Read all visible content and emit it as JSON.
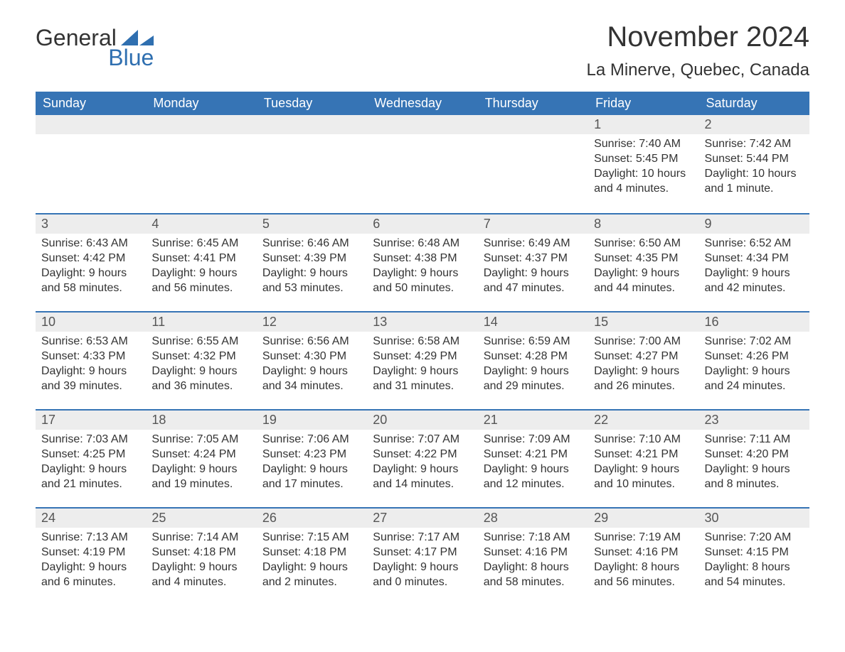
{
  "logo": {
    "word1": "General",
    "word2": "Blue"
  },
  "title": "November 2024",
  "location": "La Minerve, Quebec, Canada",
  "colors": {
    "header_bg": "#3674b5",
    "header_text": "#ffffff",
    "row_accent": "#3674b5",
    "daynum_bg": "#ededed",
    "text": "#333333",
    "logo_blue": "#2f6fb0",
    "page_bg": "#ffffff"
  },
  "columns": [
    "Sunday",
    "Monday",
    "Tuesday",
    "Wednesday",
    "Thursday",
    "Friday",
    "Saturday"
  ],
  "weeks": [
    [
      null,
      null,
      null,
      null,
      null,
      {
        "n": "1",
        "sunrise": "Sunrise: 7:40 AM",
        "sunset": "Sunset: 5:45 PM",
        "daylight": "Daylight: 10 hours and 4 minutes."
      },
      {
        "n": "2",
        "sunrise": "Sunrise: 7:42 AM",
        "sunset": "Sunset: 5:44 PM",
        "daylight": "Daylight: 10 hours and 1 minute."
      }
    ],
    [
      {
        "n": "3",
        "sunrise": "Sunrise: 6:43 AM",
        "sunset": "Sunset: 4:42 PM",
        "daylight": "Daylight: 9 hours and 58 minutes."
      },
      {
        "n": "4",
        "sunrise": "Sunrise: 6:45 AM",
        "sunset": "Sunset: 4:41 PM",
        "daylight": "Daylight: 9 hours and 56 minutes."
      },
      {
        "n": "5",
        "sunrise": "Sunrise: 6:46 AM",
        "sunset": "Sunset: 4:39 PM",
        "daylight": "Daylight: 9 hours and 53 minutes."
      },
      {
        "n": "6",
        "sunrise": "Sunrise: 6:48 AM",
        "sunset": "Sunset: 4:38 PM",
        "daylight": "Daylight: 9 hours and 50 minutes."
      },
      {
        "n": "7",
        "sunrise": "Sunrise: 6:49 AM",
        "sunset": "Sunset: 4:37 PM",
        "daylight": "Daylight: 9 hours and 47 minutes."
      },
      {
        "n": "8",
        "sunrise": "Sunrise: 6:50 AM",
        "sunset": "Sunset: 4:35 PM",
        "daylight": "Daylight: 9 hours and 44 minutes."
      },
      {
        "n": "9",
        "sunrise": "Sunrise: 6:52 AM",
        "sunset": "Sunset: 4:34 PM",
        "daylight": "Daylight: 9 hours and 42 minutes."
      }
    ],
    [
      {
        "n": "10",
        "sunrise": "Sunrise: 6:53 AM",
        "sunset": "Sunset: 4:33 PM",
        "daylight": "Daylight: 9 hours and 39 minutes."
      },
      {
        "n": "11",
        "sunrise": "Sunrise: 6:55 AM",
        "sunset": "Sunset: 4:32 PM",
        "daylight": "Daylight: 9 hours and 36 minutes."
      },
      {
        "n": "12",
        "sunrise": "Sunrise: 6:56 AM",
        "sunset": "Sunset: 4:30 PM",
        "daylight": "Daylight: 9 hours and 34 minutes."
      },
      {
        "n": "13",
        "sunrise": "Sunrise: 6:58 AM",
        "sunset": "Sunset: 4:29 PM",
        "daylight": "Daylight: 9 hours and 31 minutes."
      },
      {
        "n": "14",
        "sunrise": "Sunrise: 6:59 AM",
        "sunset": "Sunset: 4:28 PM",
        "daylight": "Daylight: 9 hours and 29 minutes."
      },
      {
        "n": "15",
        "sunrise": "Sunrise: 7:00 AM",
        "sunset": "Sunset: 4:27 PM",
        "daylight": "Daylight: 9 hours and 26 minutes."
      },
      {
        "n": "16",
        "sunrise": "Sunrise: 7:02 AM",
        "sunset": "Sunset: 4:26 PM",
        "daylight": "Daylight: 9 hours and 24 minutes."
      }
    ],
    [
      {
        "n": "17",
        "sunrise": "Sunrise: 7:03 AM",
        "sunset": "Sunset: 4:25 PM",
        "daylight": "Daylight: 9 hours and 21 minutes."
      },
      {
        "n": "18",
        "sunrise": "Sunrise: 7:05 AM",
        "sunset": "Sunset: 4:24 PM",
        "daylight": "Daylight: 9 hours and 19 minutes."
      },
      {
        "n": "19",
        "sunrise": "Sunrise: 7:06 AM",
        "sunset": "Sunset: 4:23 PM",
        "daylight": "Daylight: 9 hours and 17 minutes."
      },
      {
        "n": "20",
        "sunrise": "Sunrise: 7:07 AM",
        "sunset": "Sunset: 4:22 PM",
        "daylight": "Daylight: 9 hours and 14 minutes."
      },
      {
        "n": "21",
        "sunrise": "Sunrise: 7:09 AM",
        "sunset": "Sunset: 4:21 PM",
        "daylight": "Daylight: 9 hours and 12 minutes."
      },
      {
        "n": "22",
        "sunrise": "Sunrise: 7:10 AM",
        "sunset": "Sunset: 4:21 PM",
        "daylight": "Daylight: 9 hours and 10 minutes."
      },
      {
        "n": "23",
        "sunrise": "Sunrise: 7:11 AM",
        "sunset": "Sunset: 4:20 PM",
        "daylight": "Daylight: 9 hours and 8 minutes."
      }
    ],
    [
      {
        "n": "24",
        "sunrise": "Sunrise: 7:13 AM",
        "sunset": "Sunset: 4:19 PM",
        "daylight": "Daylight: 9 hours and 6 minutes."
      },
      {
        "n": "25",
        "sunrise": "Sunrise: 7:14 AM",
        "sunset": "Sunset: 4:18 PM",
        "daylight": "Daylight: 9 hours and 4 minutes."
      },
      {
        "n": "26",
        "sunrise": "Sunrise: 7:15 AM",
        "sunset": "Sunset: 4:18 PM",
        "daylight": "Daylight: 9 hours and 2 minutes."
      },
      {
        "n": "27",
        "sunrise": "Sunrise: 7:17 AM",
        "sunset": "Sunset: 4:17 PM",
        "daylight": "Daylight: 9 hours and 0 minutes."
      },
      {
        "n": "28",
        "sunrise": "Sunrise: 7:18 AM",
        "sunset": "Sunset: 4:16 PM",
        "daylight": "Daylight: 8 hours and 58 minutes."
      },
      {
        "n": "29",
        "sunrise": "Sunrise: 7:19 AM",
        "sunset": "Sunset: 4:16 PM",
        "daylight": "Daylight: 8 hours and 56 minutes."
      },
      {
        "n": "30",
        "sunrise": "Sunrise: 7:20 AM",
        "sunset": "Sunset: 4:15 PM",
        "daylight": "Daylight: 8 hours and 54 minutes."
      }
    ]
  ]
}
